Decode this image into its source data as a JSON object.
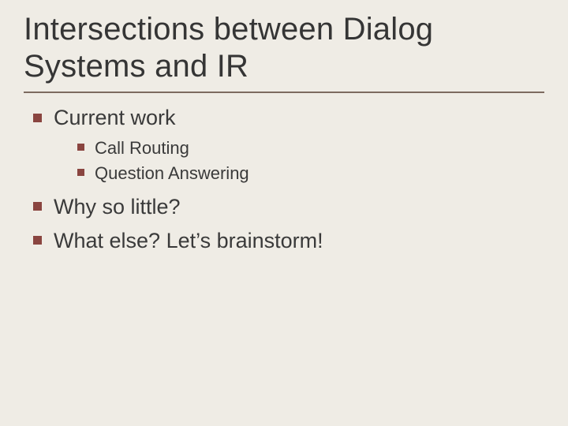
{
  "colors": {
    "background": "#efece5",
    "text": "#3a3a3a",
    "title": "#353535",
    "rule": "#7d6b60",
    "bullet_lvl1": "#8a4540",
    "bullet_lvl2": "#8a4540"
  },
  "title": "Intersections between Dialog Systems and IR",
  "bullets": [
    {
      "text": "Current work",
      "children": [
        {
          "text": "Call Routing"
        },
        {
          "text": "Question Answering"
        }
      ]
    },
    {
      "text": "Why so little?"
    },
    {
      "text": "What else? Let’s brainstorm!"
    }
  ]
}
